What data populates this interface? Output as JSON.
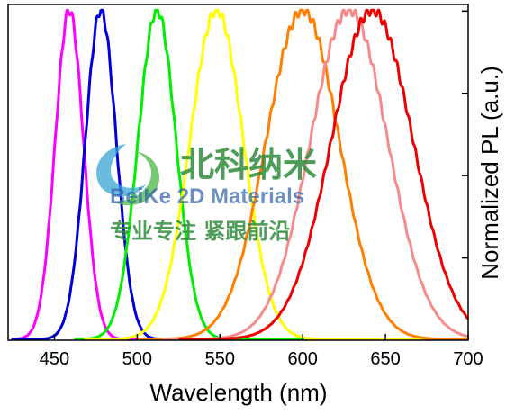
{
  "chart_data": {
    "type": "line",
    "xlabel": "Wavelength (nm)",
    "ylabel": "Normalized PL (a.u.)",
    "xlim": [
      422,
      700
    ],
    "ylim": [
      0,
      1.02
    ],
    "x_ticks": [
      450,
      500,
      550,
      600,
      650,
      700
    ],
    "y_ticks": [
      0.25,
      0.5,
      0.75,
      1.0
    ],
    "y_tick_labels_shown": false,
    "grid": false,
    "legend": "none",
    "series": [
      {
        "color": "#ff00ff",
        "peak": 459,
        "fwhm": 20,
        "start": 424,
        "end": 545
      },
      {
        "color": "#0000dd",
        "peak": 478,
        "fwhm": 22,
        "start": 424,
        "end": 595
      },
      {
        "color": "#00ee00",
        "peak": 512,
        "fwhm": 27,
        "start": 462,
        "end": 640
      },
      {
        "color": "#ffff00",
        "peak": 548,
        "fwhm": 38,
        "start": 468,
        "end": 700
      },
      {
        "color": "#ff8000",
        "peak": 600,
        "fwhm": 52,
        "start": 500,
        "end": 700
      },
      {
        "color": "#f78b8b",
        "peak": 628,
        "fwhm": 55,
        "start": 515,
        "end": 700
      },
      {
        "color": "#ee0000",
        "peak": 642,
        "fwhm": 58,
        "start": 525,
        "end": 700
      }
    ]
  },
  "watermark": {
    "cn_title": "北科纳米",
    "en_title": "BeiKe 2D Materials",
    "cn_slogan": "专业专注  紧跟前沿"
  }
}
